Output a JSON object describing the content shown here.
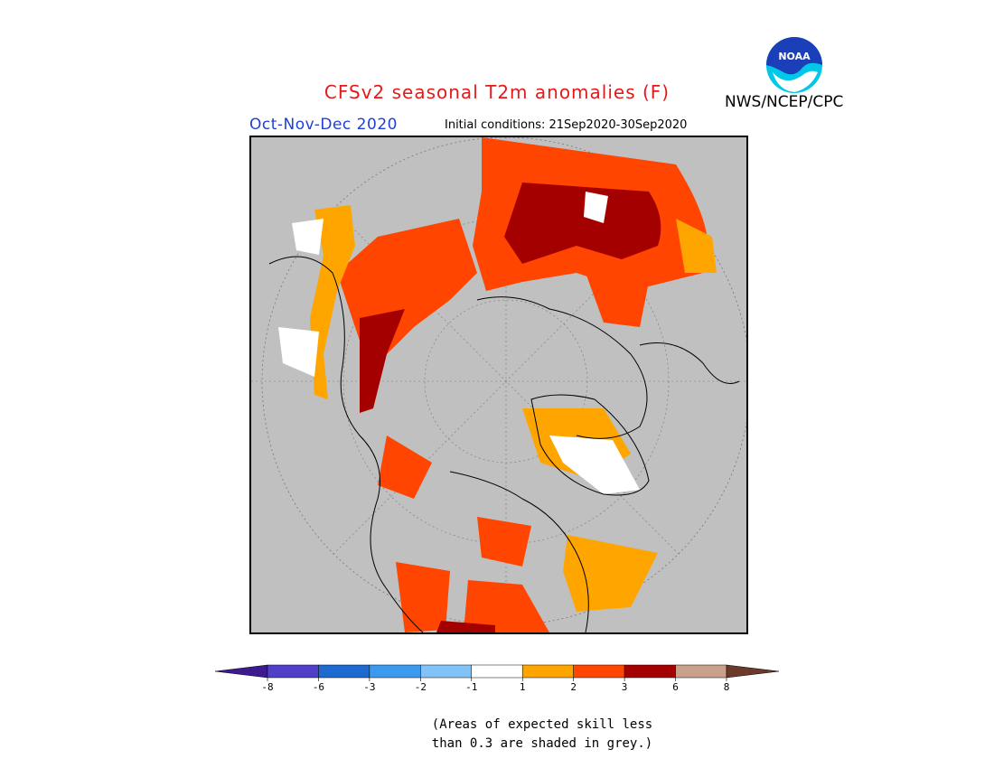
{
  "title": "CFSv2 seasonal T2m anomalies (F)",
  "season": "Oct-Nov-Dec 2020",
  "initial_conditions": "Initial conditions: 21Sep2020-30Sep2020",
  "agency": "NWS/NCEP/CPC",
  "logo_text": "NOAA",
  "colorbar": {
    "ticks": [
      "-8",
      "-6",
      "-3",
      "-2",
      "-1",
      "1",
      "2",
      "3",
      "6",
      "8"
    ],
    "colors": [
      "#3d1a8f",
      "#5040c8",
      "#1e6ad0",
      "#3a9af0",
      "#82c3f7",
      "#ffffff",
      "#ffa500",
      "#ff4500",
      "#a50000",
      "#c8a08c",
      "#6b3a2a"
    ]
  },
  "footnote_line1": "(Areas of expected skill less",
  "footnote_line2": "than 0.3 are shaded in grey.)",
  "map": {
    "projection": "north polar stereographic",
    "background_color": "#c0c0c0"
  }
}
